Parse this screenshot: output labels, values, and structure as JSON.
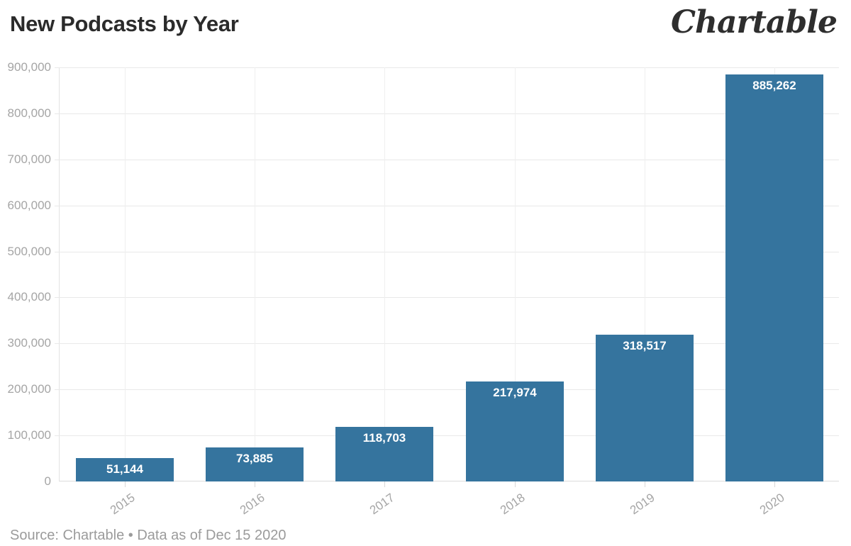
{
  "header": {
    "title": "New Podcasts by Year",
    "logo": "Chartable"
  },
  "footer": {
    "source": "Source: Chartable • Data as of Dec 15 2020"
  },
  "chart_data": {
    "type": "bar",
    "title": "New Podcasts by Year",
    "categories": [
      "2015",
      "2016",
      "2017",
      "2018",
      "2019",
      "2020"
    ],
    "values": [
      51144,
      73885,
      118703,
      217974,
      318517,
      885262
    ],
    "value_labels": [
      "51,144",
      "73,885",
      "118,703",
      "217,974",
      "318,517",
      "885,262"
    ],
    "xlabel": "",
    "ylabel": "",
    "ylim": [
      0,
      900000
    ],
    "ytick_step": 100000,
    "ytick_labels": [
      "0",
      "100,000",
      "200,000",
      "300,000",
      "400,000",
      "500,000",
      "600,000",
      "700,000",
      "800,000",
      "900,000"
    ],
    "grid": true,
    "legend": "none",
    "bar_color": "#35749e",
    "bar_label_color": "#ffffff"
  }
}
